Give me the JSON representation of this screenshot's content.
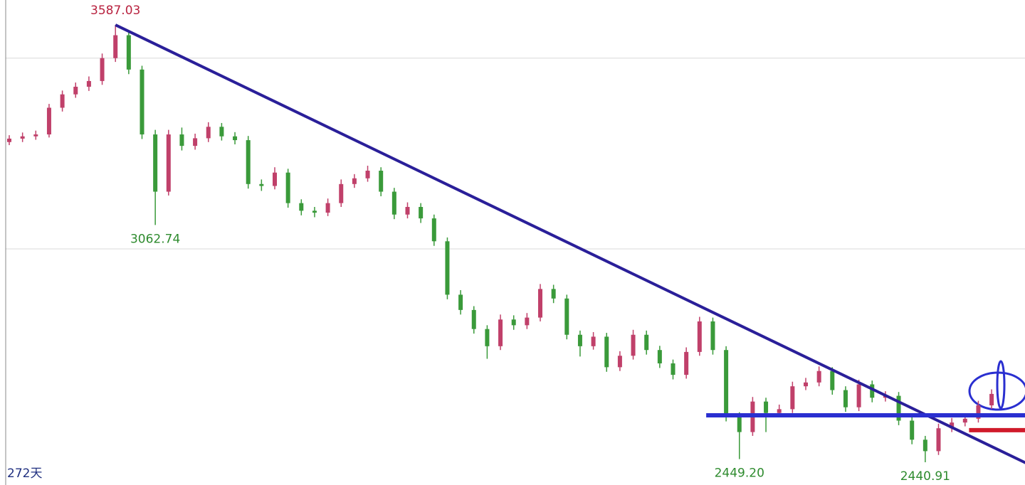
{
  "chart_data": {
    "type": "candlestick",
    "ylim": [
      2381.3,
      3652.3
    ],
    "grid_lines": [
      3500,
      3000
    ],
    "up_color": "#c0406a",
    "down_color": "#3a9a3a",
    "candles": [
      [
        3280,
        3298,
        3272,
        3289
      ],
      [
        3289,
        3305,
        3280,
        3295
      ],
      [
        3295,
        3310,
        3286,
        3300
      ],
      [
        3300,
        3380,
        3292,
        3370
      ],
      [
        3370,
        3415,
        3360,
        3405
      ],
      [
        3405,
        3436,
        3396,
        3425
      ],
      [
        3425,
        3452,
        3414,
        3440
      ],
      [
        3440,
        3512,
        3430,
        3500
      ],
      [
        3500,
        3587.03,
        3490,
        3560
      ],
      [
        3560,
        3572,
        3458,
        3470
      ],
      [
        3470,
        3480,
        3288,
        3300
      ],
      [
        3300,
        3312,
        3062.74,
        3150
      ],
      [
        3150,
        3312,
        3140,
        3300
      ],
      [
        3300,
        3318,
        3258,
        3270
      ],
      [
        3270,
        3302,
        3260,
        3290
      ],
      [
        3290,
        3332,
        3280,
        3320
      ],
      [
        3320,
        3330,
        3284,
        3295
      ],
      [
        3295,
        3306,
        3274,
        3285
      ],
      [
        3285,
        3296,
        3158,
        3170
      ],
      [
        3170,
        3182,
        3152,
        3165
      ],
      [
        3165,
        3214,
        3156,
        3200
      ],
      [
        3200,
        3210,
        3108,
        3120
      ],
      [
        3120,
        3130,
        3088,
        3100
      ],
      [
        3100,
        3110,
        3083,
        3095
      ],
      [
        3095,
        3132,
        3086,
        3120
      ],
      [
        3120,
        3182,
        3110,
        3170
      ],
      [
        3170,
        3196,
        3160,
        3185
      ],
      [
        3185,
        3218,
        3176,
        3205
      ],
      [
        3205,
        3214,
        3138,
        3150
      ],
      [
        3150,
        3160,
        3078,
        3090
      ],
      [
        3090,
        3122,
        3080,
        3110
      ],
      [
        3110,
        3120,
        3068,
        3080
      ],
      [
        3080,
        3090,
        3008,
        3020
      ],
      [
        3020,
        3030,
        2868,
        2880
      ],
      [
        2880,
        2892,
        2828,
        2840
      ],
      [
        2840,
        2850,
        2778,
        2790
      ],
      [
        2790,
        2800,
        2712,
        2745
      ],
      [
        2745,
        2828,
        2735,
        2815
      ],
      [
        2815,
        2826,
        2788,
        2800
      ],
      [
        2800,
        2832,
        2790,
        2820
      ],
      [
        2820,
        2908,
        2810,
        2895
      ],
      [
        2895,
        2906,
        2858,
        2870
      ],
      [
        2870,
        2880,
        2763,
        2775
      ],
      [
        2775,
        2786,
        2718,
        2745
      ],
      [
        2745,
        2782,
        2736,
        2770
      ],
      [
        2770,
        2780,
        2678,
        2690
      ],
      [
        2690,
        2732,
        2680,
        2720
      ],
      [
        2720,
        2788,
        2710,
        2775
      ],
      [
        2775,
        2786,
        2723,
        2735
      ],
      [
        2735,
        2746,
        2688,
        2700
      ],
      [
        2700,
        2710,
        2658,
        2670
      ],
      [
        2670,
        2742,
        2660,
        2730
      ],
      [
        2730,
        2822,
        2720,
        2810
      ],
      [
        2810,
        2820,
        2723,
        2735
      ],
      [
        2735,
        2745,
        2548,
        2560
      ],
      [
        2560,
        2572,
        2449.2,
        2520
      ],
      [
        2520,
        2612,
        2510,
        2600
      ],
      [
        2600,
        2610,
        2520,
        2570
      ],
      [
        2570,
        2592,
        2560,
        2580
      ],
      [
        2580,
        2652,
        2570,
        2640
      ],
      [
        2640,
        2662,
        2630,
        2650
      ],
      [
        2650,
        2692,
        2640,
        2680
      ],
      [
        2680,
        2690,
        2618,
        2630
      ],
      [
        2630,
        2640,
        2573,
        2585
      ],
      [
        2585,
        2657,
        2575,
        2645
      ],
      [
        2645,
        2655,
        2598,
        2610
      ],
      [
        2610,
        2627,
        2600,
        2615
      ],
      [
        2615,
        2625,
        2538,
        2550
      ],
      [
        2550,
        2560,
        2488,
        2500
      ],
      [
        2500,
        2510,
        2440.91,
        2470
      ],
      [
        2470,
        2542,
        2460,
        2530
      ],
      [
        2530,
        2557,
        2520,
        2545
      ],
      [
        2545,
        2567,
        2535,
        2555
      ],
      [
        2555,
        2602,
        2545,
        2590
      ],
      [
        2590,
        2632,
        2580,
        2620
      ]
    ],
    "annotations": [
      {
        "label": "3587.03",
        "value": 3587.03,
        "color": "#b8223f",
        "side": "high"
      },
      {
        "label": "3062.74",
        "value": 3062.74,
        "color": "#2e8b2e",
        "side": "low"
      },
      {
        "label": "2449.20",
        "value": 2449.2,
        "color": "#2e8b2e",
        "side": "low"
      },
      {
        "label": "2440.91",
        "value": 2440.91,
        "color": "#2e8b2e",
        "side": "low"
      }
    ],
    "lines": [
      {
        "from": [
          8,
          3587.03
        ],
        "to": [
          76.7,
          2437
        ],
        "color": "#2a1f99",
        "width": 4
      },
      {
        "from": [
          52.5,
          2564
        ],
        "to": [
          76.7,
          2564
        ],
        "color": "#2a2fd0",
        "width": 6
      },
      {
        "from": [
          72.3,
          2525
        ],
        "to": [
          76.7,
          2525
        ],
        "color": "#d01a2a",
        "width": 6
      }
    ],
    "footer_label": "272天"
  }
}
